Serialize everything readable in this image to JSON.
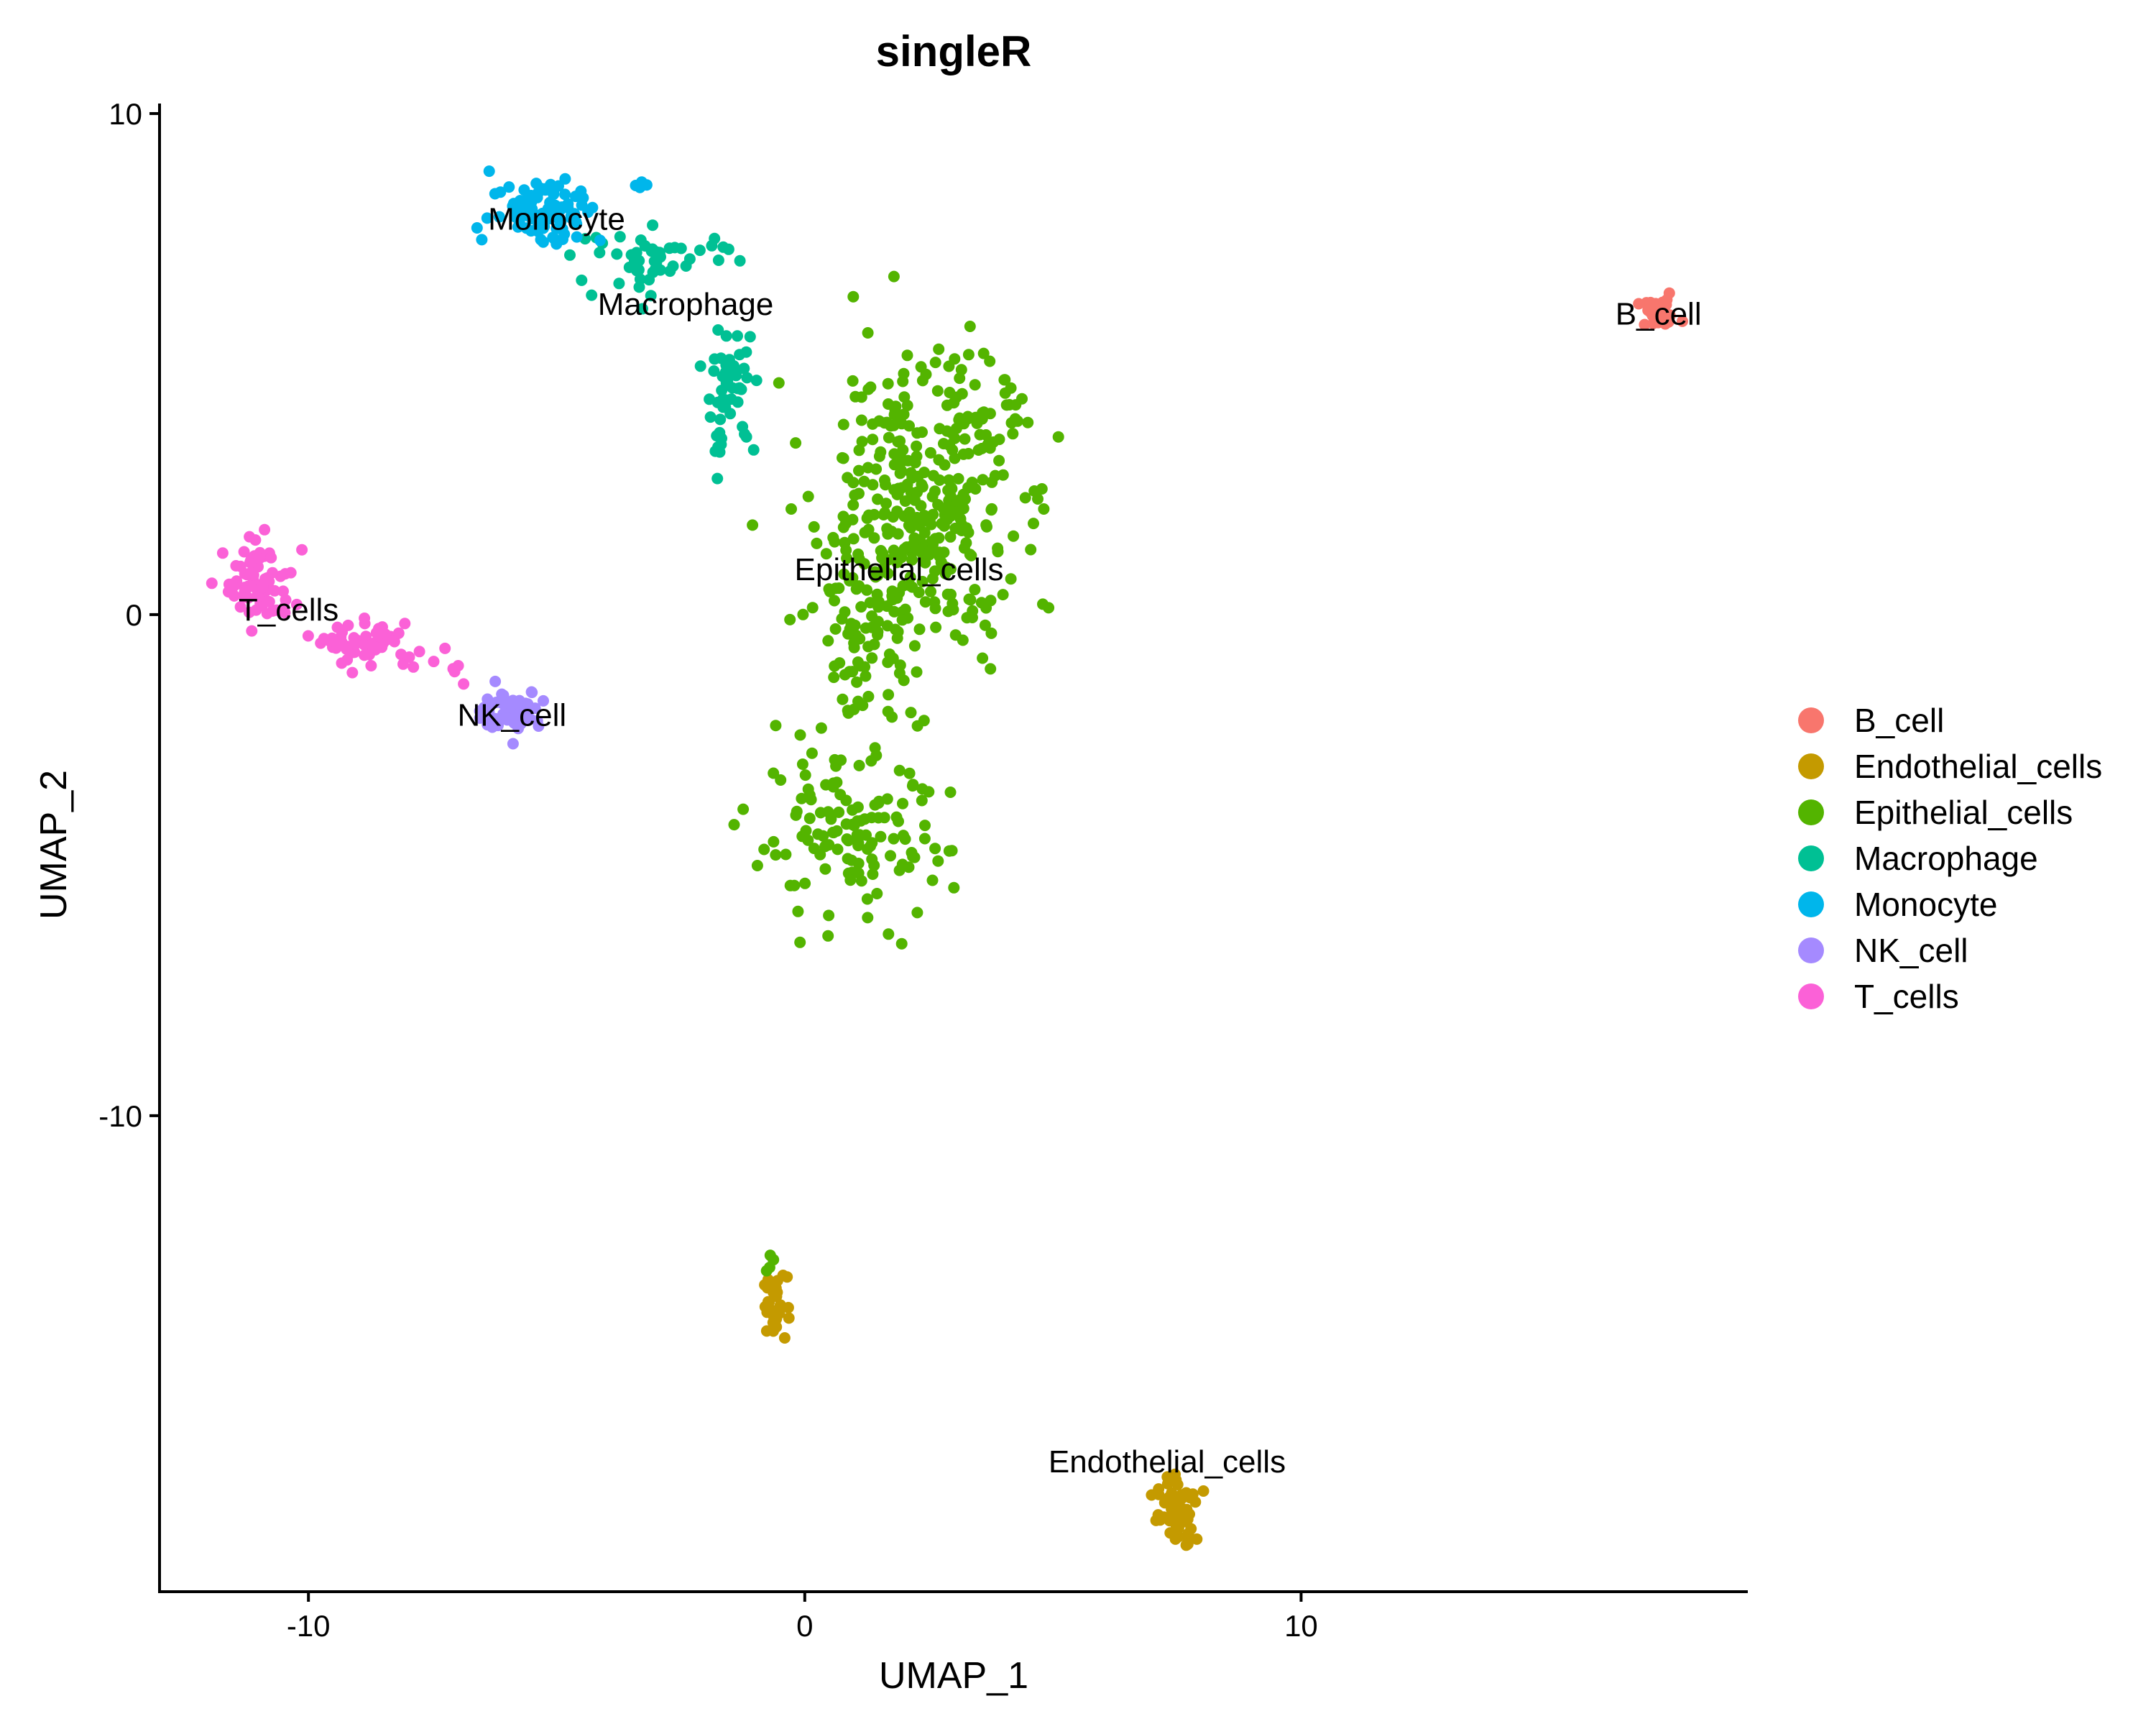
{
  "chart_data": {
    "type": "scatter",
    "title": "singleR",
    "xlabel": "UMAP_1",
    "ylabel": "UMAP_2",
    "xlim": [
      -13,
      19
    ],
    "ylim": [
      -19.5,
      10.2
    ],
    "xticks": [
      -10,
      0,
      10
    ],
    "yticks": [
      -10,
      0,
      10
    ],
    "grid": false,
    "legend_position": "right",
    "series": [
      {
        "name": "B_cell",
        "color": "#F8766D",
        "clusters": [
          {
            "cx": 17.2,
            "cy": 6.0,
            "sx": 0.22,
            "sy": 0.14,
            "n": 40
          }
        ]
      },
      {
        "name": "Endothelial_cells",
        "color": "#C49A00",
        "clusters": [
          {
            "cx": -0.6,
            "cy": -13.8,
            "sx": 0.12,
            "sy": 0.3,
            "n": 30
          },
          {
            "cx": 7.5,
            "cy": -17.9,
            "sx": 0.2,
            "sy": 0.35,
            "n": 60
          }
        ]
      },
      {
        "name": "Epithelial_cells",
        "color": "#53B400",
        "clusters": [
          {
            "cx": 2.2,
            "cy": 2.0,
            "sx": 1.0,
            "sy": 1.6,
            "n": 380
          },
          {
            "cx": 3.7,
            "cy": 4.0,
            "sx": 0.4,
            "sy": 0.5,
            "n": 25
          },
          {
            "cx": 1.2,
            "cy": -0.8,
            "sx": 0.4,
            "sy": 0.7,
            "n": 40
          },
          {
            "cx": 0.9,
            "cy": -4.5,
            "sx": 1.0,
            "sy": 0.8,
            "n": 130
          },
          {
            "cx": -0.7,
            "cy": -13.1,
            "sx": 0.05,
            "sy": 0.15,
            "n": 4
          }
        ]
      },
      {
        "name": "Macrophage",
        "color": "#00C094",
        "clusters": [
          {
            "cx": -3.0,
            "cy": 7.1,
            "sx": 0.8,
            "sy": 0.3,
            "n": 50
          },
          {
            "cx": -1.5,
            "cy": 4.5,
            "sx": 0.25,
            "sy": 0.6,
            "n": 45
          },
          {
            "cx": -1.8,
            "cy": 3.5,
            "sx": 0.1,
            "sy": 0.3,
            "n": 6
          }
        ]
      },
      {
        "name": "Monocyte",
        "color": "#00B6EB",
        "clusters": [
          {
            "cx": -5.2,
            "cy": 8.1,
            "sx": 0.55,
            "sy": 0.35,
            "n": 90
          },
          {
            "cx": -3.3,
            "cy": 8.6,
            "sx": 0.1,
            "sy": 0.06,
            "n": 5
          }
        ]
      },
      {
        "name": "NK_cell",
        "color": "#A58AFF",
        "clusters": [
          {
            "cx": -5.9,
            "cy": -1.9,
            "sx": 0.3,
            "sy": 0.2,
            "n": 70
          }
        ]
      },
      {
        "name": "T_cells",
        "color": "#FB61D7",
        "clusters": [
          {
            "cx": -11.0,
            "cy": 0.6,
            "sx": 0.35,
            "sy": 0.4,
            "n": 80
          },
          {
            "cx": -8.8,
            "cy": -0.6,
            "sx": 0.4,
            "sy": 0.2,
            "n": 55
          },
          {
            "cx": -7.6,
            "cy": -0.9,
            "sx": 0.4,
            "sy": 0.2,
            "n": 10
          }
        ]
      }
    ],
    "annotations": [
      {
        "text": "B_cell",
        "x": 17.2,
        "y": 6.0
      },
      {
        "text": "Endothelial_cells",
        "x": 7.3,
        "y": -16.9
      },
      {
        "text": "Epithelial_cells",
        "x": 1.9,
        "y": 0.9
      },
      {
        "text": "Macrophage",
        "x": -2.4,
        "y": 6.2
      },
      {
        "text": "Monocyte",
        "x": -5.0,
        "y": 7.9
      },
      {
        "text": "NK_cell",
        "x": -5.9,
        "y": -2.0
      },
      {
        "text": "T_cells",
        "x": -10.4,
        "y": 0.1
      }
    ]
  }
}
